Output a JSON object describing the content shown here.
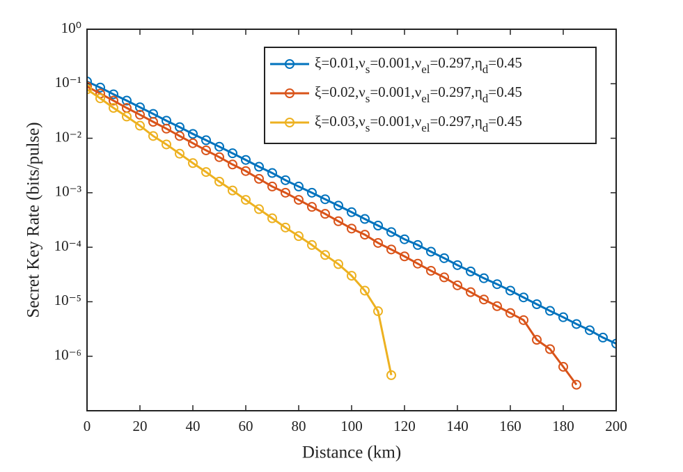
{
  "chart_data": {
    "type": "line",
    "xlabel": "Distance (km)",
    "ylabel": "Secret Key Rate (bits/pulse)",
    "log_y": true,
    "legend": "upper right",
    "xlim": [
      0,
      200
    ],
    "xticks": [
      0,
      20,
      40,
      60,
      80,
      100,
      120,
      140,
      160,
      180,
      200
    ],
    "ylim": [
      1e-07,
      1
    ],
    "yticks": [
      {
        "value": 1,
        "label": "10⁰"
      },
      {
        "value": 0.1,
        "label": "10⁻¹"
      },
      {
        "value": 0.01,
        "label": "10⁻²"
      },
      {
        "value": 0.001,
        "label": "10⁻³"
      },
      {
        "value": 0.0001,
        "label": "10⁻⁴"
      },
      {
        "value": 1e-05,
        "label": "10⁻⁵"
      },
      {
        "value": 1e-06,
        "label": "10⁻⁶"
      }
    ],
    "series": [
      {
        "name": "ξ=0.01,νs=0.001,νel=0.297,ηd=0.45",
        "color": "#0072BD",
        "x": [
          0,
          5,
          10,
          15,
          20,
          25,
          30,
          35,
          40,
          45,
          50,
          55,
          60,
          65,
          70,
          75,
          80,
          85,
          90,
          95,
          100,
          105,
          110,
          115,
          120,
          125,
          130,
          135,
          140,
          145,
          150,
          155,
          160,
          165,
          170,
          175,
          180,
          185,
          190,
          195,
          200
        ],
        "values": [
          0.11,
          0.085,
          0.064,
          0.049,
          0.037,
          0.028,
          0.021,
          0.016,
          0.012,
          0.0092,
          0.007,
          0.0053,
          0.004,
          0.003,
          0.0023,
          0.0017,
          0.0013,
          0.001,
          0.00076,
          0.00058,
          0.00044,
          0.00033,
          0.00025,
          0.00019,
          0.00014,
          0.00011,
          8.3e-05,
          6.3e-05,
          4.7e-05,
          3.6e-05,
          2.7e-05,
          2.1e-05,
          1.6e-05,
          1.2e-05,
          9e-06,
          6.8e-06,
          5.2e-06,
          3.9e-06,
          3e-06,
          2.2e-06,
          1.7e-06
        ]
      },
      {
        "name": "ξ=0.02,νs=0.001,νel=0.297,ηd=0.45",
        "color": "#D95319",
        "x": [
          0,
          5,
          10,
          15,
          20,
          25,
          30,
          35,
          40,
          45,
          50,
          55,
          60,
          65,
          70,
          75,
          80,
          85,
          90,
          95,
          100,
          105,
          110,
          115,
          120,
          125,
          130,
          135,
          140,
          145,
          150,
          155,
          160,
          165,
          170,
          175,
          180,
          185
        ],
        "values": [
          0.089,
          0.066,
          0.049,
          0.036,
          0.027,
          0.02,
          0.015,
          0.011,
          0.0081,
          0.006,
          0.0045,
          0.0033,
          0.0025,
          0.0018,
          0.0013,
          0.001,
          0.00074,
          0.00055,
          0.00041,
          0.0003,
          0.00022,
          0.00017,
          0.00012,
          9.1e-05,
          6.8e-05,
          5e-05,
          3.7e-05,
          2.8e-05,
          2e-05,
          1.5e-05,
          1.1e-05,
          8.3e-06,
          6.2e-06,
          4.6e-06,
          2e-06,
          1.35e-06,
          6.4e-07,
          3e-07
        ]
      },
      {
        "name": "ξ=0.03,νs=0.001,νel=0.297,ηd=0.45",
        "color": "#EDB120",
        "x": [
          0,
          5,
          10,
          15,
          20,
          25,
          30,
          35,
          40,
          45,
          50,
          55,
          60,
          65,
          70,
          75,
          80,
          85,
          90,
          95,
          100,
          105,
          110,
          115
        ],
        "values": [
          0.079,
          0.054,
          0.036,
          0.025,
          0.017,
          0.011,
          0.0077,
          0.0052,
          0.0035,
          0.0024,
          0.0016,
          0.0011,
          0.00074,
          0.0005,
          0.00034,
          0.00023,
          0.00016,
          0.00011,
          7.2e-05,
          4.9e-05,
          3e-05,
          1.6e-05,
          6.7e-06,
          4.5e-07
        ]
      }
    ]
  }
}
